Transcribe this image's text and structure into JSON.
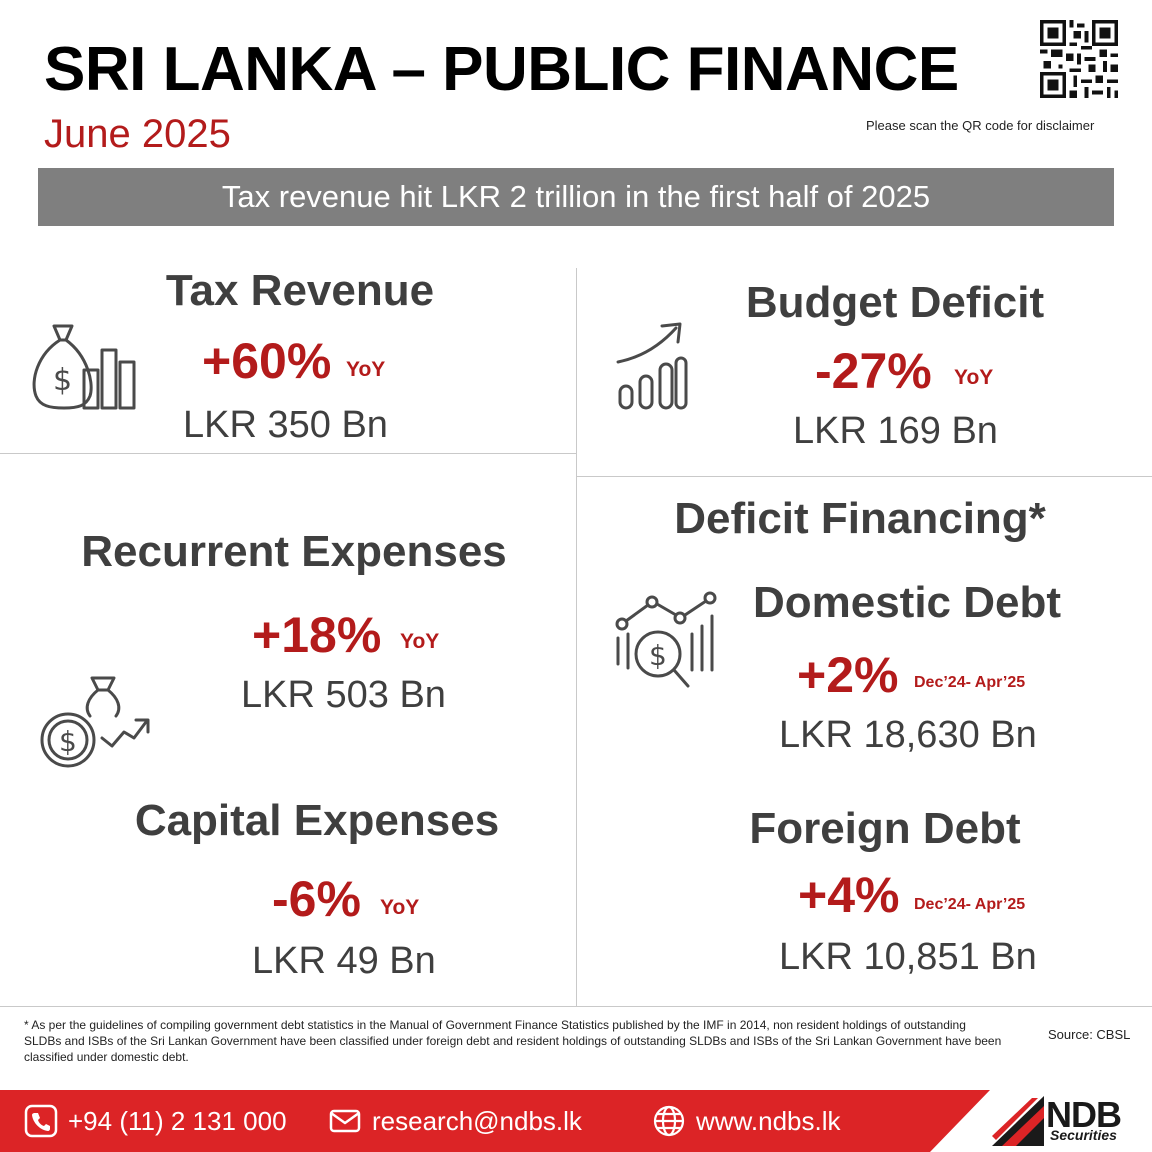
{
  "header": {
    "title": "SRI LANKA – PUBLIC FINANCE",
    "subtitle": "June 2025",
    "qr_note": "Please scan the QR code for disclaimer"
  },
  "banner": {
    "text": "Tax revenue hit LKR 2 trillion in the first half of 2025"
  },
  "tax_revenue": {
    "heading": "Tax Revenue",
    "change": "+60%",
    "period": "YoY",
    "value": "LKR 350 Bn",
    "icon": "money-bag-bar-chart-icon"
  },
  "budget_deficit": {
    "heading": "Budget Deficit",
    "change": "-27%",
    "period": "YoY",
    "value": "LKR 169 Bn",
    "icon": "growth-chart-arrow-icon"
  },
  "recurrent_expenses": {
    "heading": "Recurrent Expenses",
    "change": "+18%",
    "period": "YoY",
    "value": "LKR 503 Bn",
    "icon": "coin-money-bag-trend-icon"
  },
  "capital_expenses": {
    "heading": "Capital Expenses",
    "change": "-6%",
    "period": "YoY",
    "value": "LKR 49 Bn"
  },
  "deficit_financing": {
    "heading": "Deficit Financing*",
    "icon": "dollar-magnifier-chart-icon",
    "domestic_debt": {
      "heading": "Domestic Debt",
      "change": "+2%",
      "period": "Dec’24- Apr’25",
      "value": "LKR 18,630 Bn"
    },
    "foreign_debt": {
      "heading": "Foreign Debt",
      "change": "+4%",
      "period": "Dec’24- Apr’25",
      "value": "LKR 10,851 Bn"
    }
  },
  "footnote": "* As per the guidelines of compiling government debt statistics in the Manual of Government Finance Statistics published by the IMF in 2014,  non resident holdings of outstanding SLDBs and ISBs of the Sri Lankan Government have been classified under foreign debt and resident holdings of outstanding SLDBs and ISBs of the Sri Lankan Government have been classified under domestic debt.",
  "source": "Source:  CBSL",
  "footer": {
    "phone": "+94 (11) 2 131 000",
    "email": "research@ndbs.lk",
    "website": "www.ndbs.lk",
    "logo_name": "NDB",
    "logo_sub": "Securities"
  },
  "colors": {
    "accent_red": "#b31b1b",
    "footer_red": "#dc2426",
    "banner_grey": "#7f7f7f",
    "text_dark": "#3f3f3f"
  }
}
